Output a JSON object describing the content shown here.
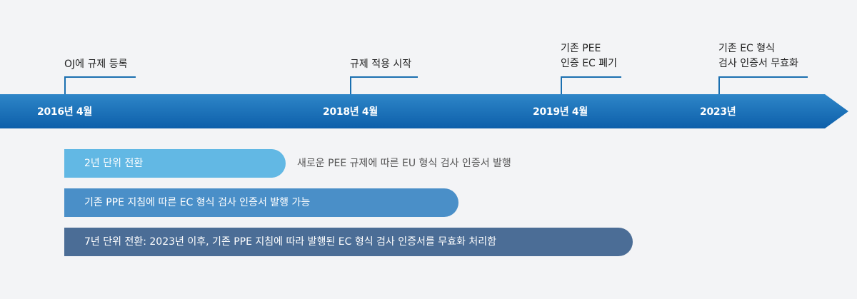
{
  "colors": {
    "background": "#f3f4f6",
    "arrow_dark": "#0d5faa",
    "arrow_light": "#2e86c8",
    "connector": "#1a6fb0",
    "bar_1": "#62b8e4",
    "bar_2": "#4a8fc8",
    "bar_3": "#4b6d96"
  },
  "timeline": {
    "years": [
      {
        "label": "2016년 4월"
      },
      {
        "label": "2018년 4월"
      },
      {
        "label": "2019년 4월"
      },
      {
        "label": "2023년"
      }
    ]
  },
  "milestones": [
    {
      "line1": "OJ에 규제 등록",
      "line2": ""
    },
    {
      "line1": "규제 적용 시작",
      "line2": ""
    },
    {
      "line1": "기존 PEE",
      "line2": "인증 EC 폐기"
    },
    {
      "line1": "기존 EC 형식",
      "line2": "검사 인증서 무효화"
    }
  ],
  "bars": [
    {
      "label": "2년 단위 전환",
      "note": "새로운 PEE 규제에 따른 EU 형식 검사 인증서 발행"
    },
    {
      "label": "기존 PPE 지침에 따른 EC 형식 검사 인증서 발행 가능",
      "note": ""
    },
    {
      "label": "7년 단위 전환: 2023년 이후, 기존 PPE 지침에 따라 발행된 EC 형식 검사 인증서를 무효화 처리함",
      "note": ""
    }
  ]
}
